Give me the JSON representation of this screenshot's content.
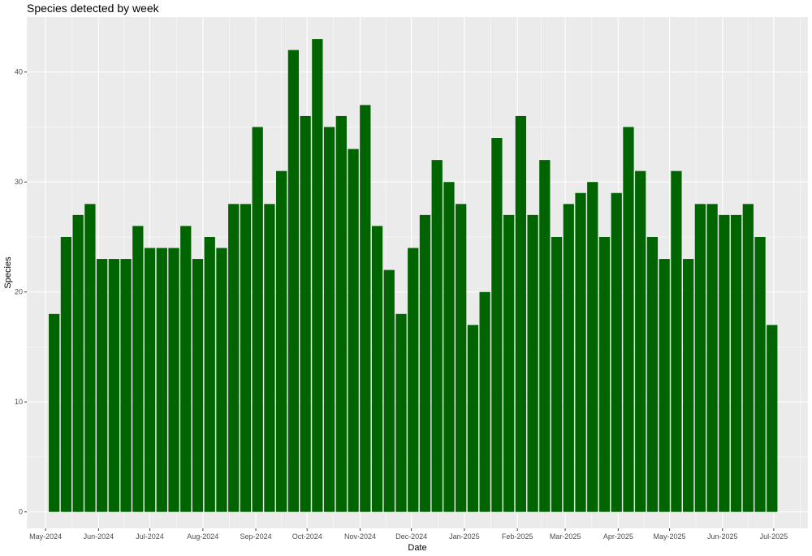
{
  "chart_data": {
    "type": "bar",
    "title": "Species detected by week",
    "xlabel": "Date",
    "ylabel": "Species",
    "ylim": [
      -1.5,
      45
    ],
    "xlim": [
      "2024-04-20",
      "2025-07-21"
    ],
    "grid": true,
    "bar_color": "#006400",
    "panel_background": "#ebebeb",
    "grid_color": "#ffffff",
    "y_ticks": [
      0,
      10,
      20,
      30,
      40
    ],
    "x_ticks": [
      {
        "date": "2024-05-01",
        "label": "May-2024"
      },
      {
        "date": "2024-06-01",
        "label": "Jun-2024"
      },
      {
        "date": "2024-07-01",
        "label": "Jul-2024"
      },
      {
        "date": "2024-08-01",
        "label": "Aug-2024"
      },
      {
        "date": "2024-09-01",
        "label": "Sep-2024"
      },
      {
        "date": "2024-10-01",
        "label": "Oct-2024"
      },
      {
        "date": "2024-11-01",
        "label": "Nov-2024"
      },
      {
        "date": "2024-12-01",
        "label": "Dec-2024"
      },
      {
        "date": "2025-01-01",
        "label": "Jan-2025"
      },
      {
        "date": "2025-02-01",
        "label": "Feb-2025"
      },
      {
        "date": "2025-03-01",
        "label": "Mar-2025"
      },
      {
        "date": "2025-04-01",
        "label": "Apr-2025"
      },
      {
        "date": "2025-05-01",
        "label": "May-2025"
      },
      {
        "date": "2025-06-01",
        "label": "Jun-2025"
      },
      {
        "date": "2025-07-01",
        "label": "Jul-2025"
      }
    ],
    "bar_width_days": 6.3,
    "x": [
      "2024-05-06",
      "2024-05-13",
      "2024-05-20",
      "2024-05-27",
      "2024-06-03",
      "2024-06-10",
      "2024-06-17",
      "2024-06-24",
      "2024-07-01",
      "2024-07-08",
      "2024-07-15",
      "2024-07-22",
      "2024-07-29",
      "2024-08-05",
      "2024-08-12",
      "2024-08-19",
      "2024-08-26",
      "2024-09-02",
      "2024-09-09",
      "2024-09-16",
      "2024-09-23",
      "2024-09-30",
      "2024-10-07",
      "2024-10-14",
      "2024-10-21",
      "2024-10-28",
      "2024-11-04",
      "2024-11-11",
      "2024-11-18",
      "2024-11-25",
      "2024-12-02",
      "2024-12-09",
      "2024-12-16",
      "2024-12-23",
      "2024-12-30",
      "2025-01-06",
      "2025-01-13",
      "2025-01-20",
      "2025-01-27",
      "2025-02-03",
      "2025-02-10",
      "2025-02-17",
      "2025-02-24",
      "2025-03-03",
      "2025-03-10",
      "2025-03-17",
      "2025-03-24",
      "2025-03-31",
      "2025-04-07",
      "2025-04-14",
      "2025-04-21",
      "2025-04-28",
      "2025-05-05",
      "2025-05-12",
      "2025-05-19",
      "2025-05-26",
      "2025-06-02",
      "2025-06-09",
      "2025-06-16",
      "2025-06-23",
      "2025-06-30"
    ],
    "values": [
      18,
      25,
      27,
      28,
      23,
      23,
      23,
      26,
      24,
      24,
      24,
      26,
      23,
      25,
      24,
      28,
      28,
      35,
      28,
      31,
      42,
      36,
      43,
      35,
      36,
      33,
      37,
      26,
      22,
      18,
      24,
      27,
      32,
      30,
      28,
      17,
      20,
      34,
      27,
      36,
      27,
      32,
      25,
      28,
      29,
      30,
      25,
      29,
      35,
      31,
      25,
      23,
      31,
      23,
      28,
      28,
      27,
      27,
      28,
      25,
      17
    ]
  }
}
